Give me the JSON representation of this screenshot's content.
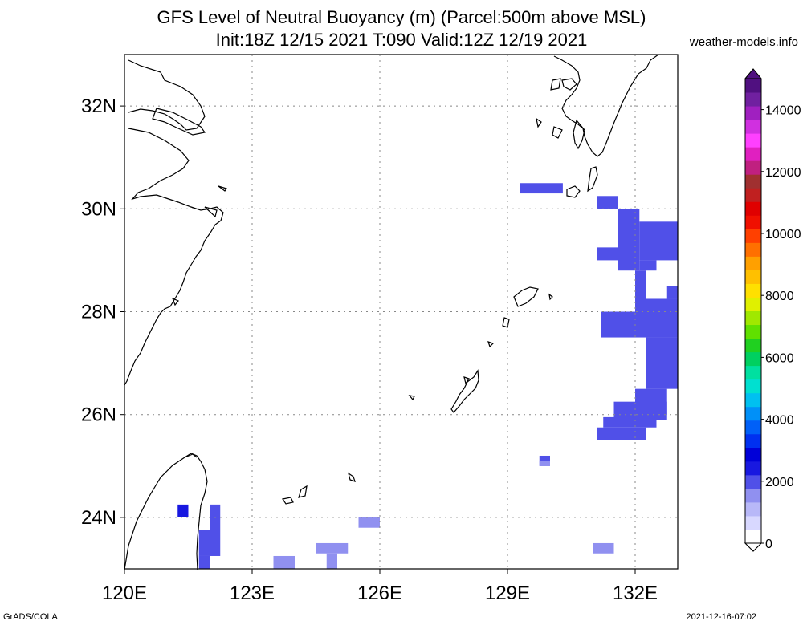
{
  "title_line1": "GFS Level of Neutral Buoyancy (m) (Parcel:500m above MSL)",
  "title_line2": "Init:18Z 12/15 2021 T:090 Valid:12Z 12/19 2021",
  "site": "weather-models.info",
  "footer_left": "GrADS/COLA",
  "footer_right": "2021-12-16-07:02",
  "map": {
    "lon_range": [
      120,
      133
    ],
    "lat_range": [
      23,
      33
    ],
    "lon_ticks": [
      {
        "value": 120,
        "label": "120E"
      },
      {
        "value": 123,
        "label": "123E"
      },
      {
        "value": 126,
        "label": "126E"
      },
      {
        "value": 129,
        "label": "129E"
      },
      {
        "value": 132,
        "label": "132E"
      }
    ],
    "lat_ticks": [
      {
        "value": 24,
        "label": "24N"
      },
      {
        "value": 26,
        "label": "26N"
      },
      {
        "value": 28,
        "label": "28N"
      },
      {
        "value": 30,
        "label": "30N"
      },
      {
        "value": 32,
        "label": "32N"
      }
    ],
    "grid": "dotted",
    "fill_cells": [
      {
        "lon0": 129.3,
        "lon1": 130.3,
        "lat0": 30.3,
        "lat1": 30.5,
        "value": 1800
      },
      {
        "lon0": 131.1,
        "lon1": 131.6,
        "lat0": 30.0,
        "lat1": 30.25,
        "value": 1800
      },
      {
        "lon0": 131.6,
        "lon1": 132.1,
        "lat0": 28.8,
        "lat1": 30.0,
        "value": 1800
      },
      {
        "lon0": 132.1,
        "lon1": 133.0,
        "lat0": 29.0,
        "lat1": 29.75,
        "value": 1800
      },
      {
        "lon0": 131.1,
        "lon1": 131.6,
        "lat0": 29.0,
        "lat1": 29.25,
        "value": 1800
      },
      {
        "lon0": 132.1,
        "lon1": 132.5,
        "lat0": 28.8,
        "lat1": 29.0,
        "value": 1800
      },
      {
        "lon0": 132.0,
        "lon1": 132.25,
        "lat0": 28.0,
        "lat1": 28.8,
        "value": 1800
      },
      {
        "lon0": 132.25,
        "lon1": 133.0,
        "lat0": 28.0,
        "lat1": 28.25,
        "value": 1800
      },
      {
        "lon0": 132.75,
        "lon1": 133.0,
        "lat0": 28.25,
        "lat1": 28.5,
        "value": 1800
      },
      {
        "lon0": 131.2,
        "lon1": 133.0,
        "lat0": 27.5,
        "lat1": 28.0,
        "value": 1800
      },
      {
        "lon0": 132.25,
        "lon1": 133.0,
        "lat0": 26.5,
        "lat1": 27.5,
        "value": 1800
      },
      {
        "lon0": 132.0,
        "lon1": 132.75,
        "lat0": 26.0,
        "lat1": 26.5,
        "value": 1800
      },
      {
        "lon0": 131.5,
        "lon1": 132.75,
        "lat0": 25.9,
        "lat1": 26.25,
        "value": 1800
      },
      {
        "lon0": 131.25,
        "lon1": 132.5,
        "lat0": 25.75,
        "lat1": 25.95,
        "value": 1800
      },
      {
        "lon0": 131.1,
        "lon1": 132.25,
        "lat0": 25.5,
        "lat1": 25.75,
        "value": 1800
      },
      {
        "lon0": 129.75,
        "lon1": 130.0,
        "lat0": 25.0,
        "lat1": 25.2,
        "value": 1800
      },
      {
        "lon0": 129.75,
        "lon1": 130.0,
        "lat0": 25.0,
        "lat1": 25.1,
        "value": 1500
      },
      {
        "lon0": 125.5,
        "lon1": 126.0,
        "lat0": 23.8,
        "lat1": 24.0,
        "value": 1500
      },
      {
        "lon0": 124.5,
        "lon1": 125.25,
        "lat0": 23.3,
        "lat1": 23.5,
        "value": 1500
      },
      {
        "lon0": 124.75,
        "lon1": 125.0,
        "lat0": 23.0,
        "lat1": 23.3,
        "value": 1500
      },
      {
        "lon0": 123.5,
        "lon1": 124.0,
        "lat0": 23.0,
        "lat1": 23.25,
        "value": 1500
      },
      {
        "lon0": 131.0,
        "lon1": 131.5,
        "lat0": 23.3,
        "lat1": 23.5,
        "value": 1500
      },
      {
        "lon0": 121.25,
        "lon1": 121.5,
        "lat0": 24.0,
        "lat1": 24.25,
        "value": 2400
      },
      {
        "lon0": 122.0,
        "lon1": 122.25,
        "lat0": 23.75,
        "lat1": 24.25,
        "value": 1800
      },
      {
        "lon0": 121.75,
        "lon1": 122.25,
        "lat0": 23.25,
        "lat1": 23.75,
        "value": 2000
      },
      {
        "lon0": 121.75,
        "lon1": 122.0,
        "lat0": 23.0,
        "lat1": 23.25,
        "value": 2000
      }
    ]
  },
  "colorbar": {
    "min": 0,
    "max": 15000,
    "labels": [
      {
        "value": 0,
        "label": "0"
      },
      {
        "value": 2000,
        "label": "2000"
      },
      {
        "value": 4000,
        "label": "4000"
      },
      {
        "value": 6000,
        "label": "6000"
      },
      {
        "value": 8000,
        "label": "8000"
      },
      {
        "value": 10000,
        "label": "10000"
      },
      {
        "value": 12000,
        "label": "12000"
      },
      {
        "value": 14000,
        "label": "14000"
      }
    ],
    "colors": [
      "#ffffff",
      "#d8d8ff",
      "#b8b8f8",
      "#9090f0",
      "#5050e8",
      "#1818e0",
      "#0000d8",
      "#0030f0",
      "#0060f8",
      "#0090f8",
      "#00c0f0",
      "#00e0d0",
      "#00e0a0",
      "#00d060",
      "#20d020",
      "#60e000",
      "#a0e800",
      "#e0f000",
      "#ffe000",
      "#ffc000",
      "#ffa000",
      "#ff7000",
      "#ff4000",
      "#f01000",
      "#e00000",
      "#c02020",
      "#a03030",
      "#c02080",
      "#e020c0",
      "#ff40ff",
      "#d030e0",
      "#a020c0",
      "#7020a0",
      "#501080"
    ]
  }
}
